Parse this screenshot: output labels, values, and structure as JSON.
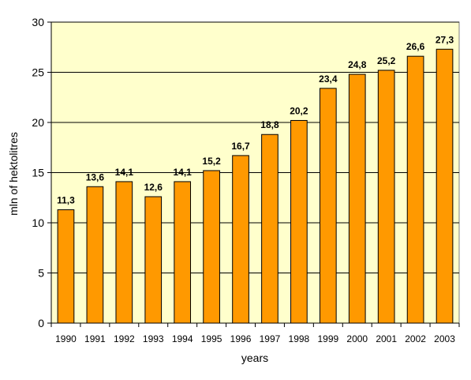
{
  "chart_data": {
    "type": "bar",
    "title": "",
    "xlabel": "years",
    "ylabel": "mln  of hektolitres",
    "ylim": [
      0,
      30
    ],
    "yticks": [
      0,
      5,
      10,
      15,
      20,
      25,
      30
    ],
    "grid": true,
    "legend": "none",
    "colors": {
      "bar": "#FF9900",
      "bar_stroke": "#000000",
      "plot_bg": "#FFFFCC",
      "grid": "#000000"
    },
    "categories": [
      "1990",
      "1991",
      "1992",
      "1993",
      "1994",
      "1995",
      "1996",
      "1997",
      "1998",
      "1999",
      "2000",
      "2001",
      "2002",
      "2003"
    ],
    "values": [
      11.3,
      13.6,
      14.1,
      12.6,
      14.1,
      15.2,
      16.7,
      18.8,
      20.2,
      23.4,
      24.8,
      25.2,
      26.6,
      27.3
    ],
    "data_labels": [
      "11,3",
      "13,6",
      "14,1",
      "12,6",
      "14,1",
      "15,2",
      "16,7",
      "18,8",
      "20,2",
      "23,4",
      "24,8",
      "25,2",
      "26,6",
      "27,3"
    ]
  }
}
